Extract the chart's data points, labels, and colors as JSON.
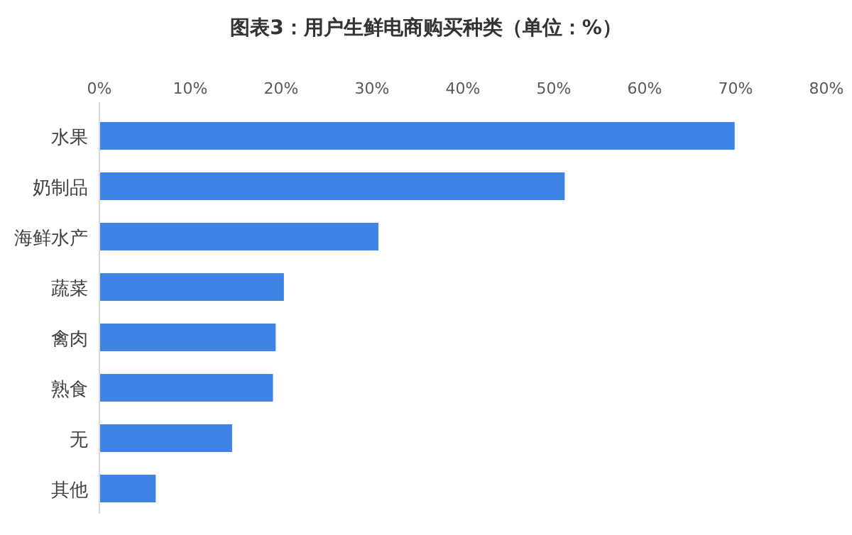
{
  "chart_data": {
    "type": "bar",
    "orientation": "horizontal",
    "title": "图表3：用户生鲜电商购买种类（单位：%）",
    "categories": [
      "水果",
      "奶制品",
      "海鲜水产",
      "蔬菜",
      "禽肉",
      "熟食",
      "无",
      "其他"
    ],
    "values": [
      69.9,
      51.2,
      30.7,
      20.3,
      19.4,
      19.1,
      14.6,
      6.2
    ],
    "color": "#3f84e5",
    "xlim": [
      0,
      80
    ],
    "xticks": [
      {
        "value": 0,
        "label": "0%"
      },
      {
        "value": 10,
        "label": "10%"
      },
      {
        "value": 20,
        "label": "20%"
      },
      {
        "value": 30,
        "label": "30%"
      },
      {
        "value": 40,
        "label": "40%"
      },
      {
        "value": 50,
        "label": "50%"
      },
      {
        "value": 60,
        "label": "60%"
      },
      {
        "value": 70,
        "label": "70%"
      },
      {
        "value": 80,
        "label": "80%"
      }
    ],
    "grid": false
  }
}
